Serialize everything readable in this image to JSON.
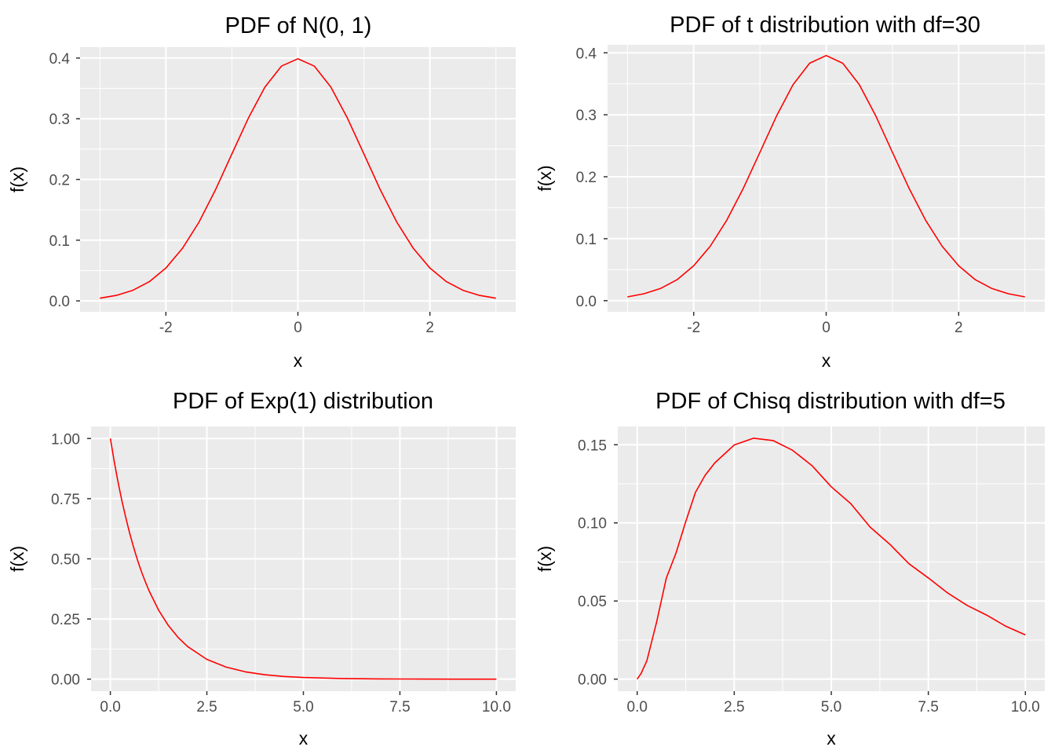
{
  "chart_data": [
    {
      "type": "line",
      "title": "PDF of N(0, 1)",
      "xlabel": "x",
      "ylabel": "f(x)",
      "xlim": [
        -3.3,
        3.3
      ],
      "ylim": [
        -0.018,
        0.418
      ],
      "x_ticks": [
        -2,
        0,
        2
      ],
      "x_tick_labels": [
        "-2",
        "0",
        "2"
      ],
      "y_ticks": [
        0.0,
        0.1,
        0.2,
        0.3,
        0.4
      ],
      "y_tick_labels": [
        "0.0",
        "0.1",
        "0.2",
        "0.3",
        "0.4"
      ],
      "grid": true,
      "line_color": "#ff0000",
      "series": [
        {
          "x": [
            -3.0,
            -2.75,
            -2.5,
            -2.25,
            -2.0,
            -1.75,
            -1.5,
            -1.25,
            -1.0,
            -0.75,
            -0.5,
            -0.25,
            0.0,
            0.25,
            0.5,
            0.75,
            1.0,
            1.25,
            1.5,
            1.75,
            2.0,
            2.25,
            2.5,
            2.75,
            3.0
          ],
          "y": [
            0.0044,
            0.0091,
            0.0175,
            0.0317,
            0.054,
            0.0863,
            0.1295,
            0.1826,
            0.242,
            0.3011,
            0.3521,
            0.3867,
            0.3989,
            0.3867,
            0.3521,
            0.3011,
            0.242,
            0.1826,
            0.1295,
            0.0863,
            0.054,
            0.0317,
            0.0175,
            0.0091,
            0.0044
          ]
        }
      ]
    },
    {
      "type": "line",
      "title": "PDF of t distribution with df=30",
      "xlabel": "x",
      "ylabel": "f(x)",
      "xlim": [
        -3.3,
        3.3
      ],
      "ylim": [
        -0.018,
        0.413
      ],
      "x_ticks": [
        -2,
        0,
        2
      ],
      "x_tick_labels": [
        "-2",
        "0",
        "2"
      ],
      "y_ticks": [
        0.0,
        0.1,
        0.2,
        0.3,
        0.4
      ],
      "y_tick_labels": [
        "0.0",
        "0.1",
        "0.2",
        "0.3",
        "0.4"
      ],
      "grid": true,
      "line_color": "#ff0000",
      "series": [
        {
          "x": [
            -3.0,
            -2.75,
            -2.5,
            -2.25,
            -2.0,
            -1.75,
            -1.5,
            -1.25,
            -1.0,
            -0.75,
            -0.5,
            -0.25,
            0.0,
            0.25,
            0.5,
            0.75,
            1.0,
            1.25,
            1.5,
            1.75,
            2.0,
            2.25,
            2.5,
            2.75,
            3.0
          ],
          "y": [
            0.0061,
            0.0111,
            0.0197,
            0.0339,
            0.0563,
            0.0878,
            0.1299,
            0.1815,
            0.2395,
            0.2979,
            0.3486,
            0.3832,
            0.3956,
            0.3832,
            0.3486,
            0.2979,
            0.2395,
            0.1815,
            0.1299,
            0.0878,
            0.0563,
            0.0339,
            0.0197,
            0.0111,
            0.0061
          ]
        }
      ]
    },
    {
      "type": "line",
      "title": "PDF of Exp(1) distribution",
      "xlabel": "x",
      "ylabel": "f(x)",
      "xlim": [
        -0.5,
        10.5
      ],
      "ylim": [
        -0.05,
        1.05
      ],
      "x_ticks": [
        0.0,
        2.5,
        5.0,
        7.5,
        10.0
      ],
      "x_tick_labels": [
        "0.0",
        "2.5",
        "5.0",
        "7.5",
        "10.0"
      ],
      "y_ticks": [
        0.0,
        0.25,
        0.5,
        0.75,
        1.0
      ],
      "y_tick_labels": [
        "0.00",
        "0.25",
        "0.50",
        "0.75",
        "1.00"
      ],
      "grid": true,
      "line_color": "#ff0000",
      "series": [
        {
          "x": [
            0.0,
            0.1,
            0.2,
            0.3,
            0.4,
            0.5,
            0.6,
            0.7,
            0.8,
            0.9,
            1.0,
            1.25,
            1.5,
            1.75,
            2.0,
            2.5,
            3.0,
            3.5,
            4.0,
            4.5,
            5.0,
            6.0,
            7.0,
            8.0,
            9.0,
            10.0
          ],
          "y": [
            1.0,
            0.9048,
            0.8187,
            0.7408,
            0.6703,
            0.6065,
            0.5488,
            0.4966,
            0.4493,
            0.4066,
            0.3679,
            0.2865,
            0.2231,
            0.1738,
            0.1353,
            0.0821,
            0.0498,
            0.0302,
            0.0183,
            0.0111,
            0.0067,
            0.0025,
            0.0009,
            0.0003,
            0.0001,
            0.0
          ]
        }
      ]
    },
    {
      "type": "line",
      "title": "PDF of Chisq distribution with df=5",
      "xlabel": "x",
      "ylabel": "f(x)",
      "xlim": [
        -0.5,
        10.5
      ],
      "ylim": [
        -0.0077,
        0.1617
      ],
      "x_ticks": [
        0.0,
        2.5,
        5.0,
        7.5,
        10.0
      ],
      "x_tick_labels": [
        "0.0",
        "2.5",
        "5.0",
        "7.5",
        "10.0"
      ],
      "y_ticks": [
        0.0,
        0.05,
        0.1,
        0.15
      ],
      "y_tick_labels": [
        "0.00",
        "0.05",
        "0.10",
        "0.15"
      ],
      "grid": true,
      "line_color": "#ff0000",
      "series": [
        {
          "x": [
            0.0,
            0.1,
            0.25,
            0.5,
            0.75,
            1.0,
            1.25,
            1.5,
            1.75,
            2.0,
            2.5,
            3.0,
            3.5,
            4.0,
            4.5,
            5.0,
            5.5,
            6.0,
            6.5,
            7.0,
            7.5,
            8.0,
            8.5,
            9.0,
            9.5,
            10.0
          ],
          "y": [
            0.0,
            0.0036,
            0.0118,
            0.0366,
            0.0646,
            0.0807,
            0.1007,
            0.1195,
            0.1305,
            0.1384,
            0.1499,
            0.1542,
            0.1527,
            0.1465,
            0.1367,
            0.1231,
            0.1124,
            0.0973,
            0.0865,
            0.0739,
            0.0648,
            0.0551,
            0.0472,
            0.041,
            0.0338,
            0.0283
          ]
        }
      ]
    }
  ]
}
